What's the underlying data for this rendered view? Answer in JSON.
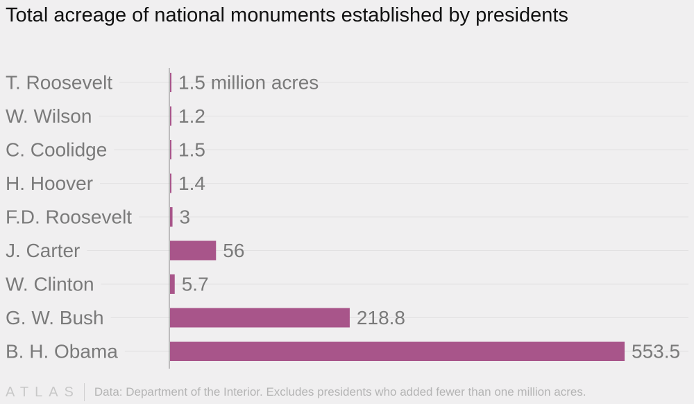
{
  "chart_data": {
    "type": "bar",
    "orientation": "horizontal",
    "title": "Total acreage of national monuments established by presidents",
    "categories": [
      "T. Roosevelt",
      "W. Wilson",
      "C. Coolidge",
      "H. Hoover",
      "F.D. Roosevelt",
      "J. Carter",
      "W. Clinton",
      "G. W. Bush",
      "B. H. Obama"
    ],
    "values": [
      1.5,
      1.2,
      1.5,
      1.4,
      3,
      56,
      5.7,
      218.8,
      553.5
    ],
    "value_labels": [
      "1.5 million acres",
      "1.2",
      "1.5",
      "1.4",
      "3",
      "56",
      "5.7",
      "218.8",
      "553.5"
    ],
    "xlim": [
      0,
      553.5
    ],
    "grid": true,
    "bar_color": "#a8558a"
  },
  "footer": {
    "logo": "ATLAS",
    "source": "Data: Department of the Interior. Excludes presidents who added fewer than one million acres."
  },
  "colors": {
    "background": "#f0eff0",
    "bar": "#a8558a",
    "label": "#7a7a7a"
  }
}
